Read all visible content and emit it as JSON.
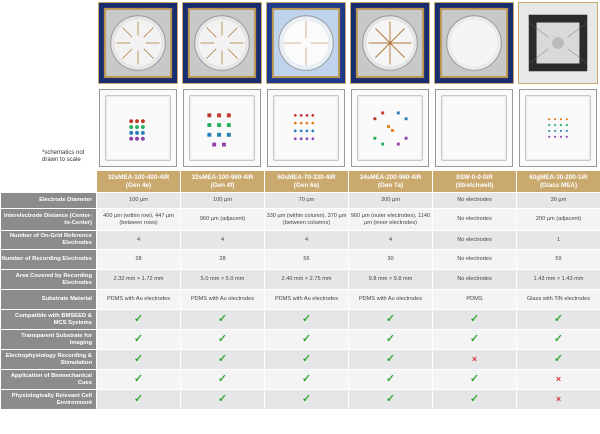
{
  "note": "*schematics not drawn to scale",
  "products": [
    {
      "name": "32sMEA-100-400-4iR",
      "gen": "(Gen 4e)"
    },
    {
      "name": "32sMEA-100-960-4iR",
      "gen": "(Gen 4f)"
    },
    {
      "name": "60sMEA-70-330-4iR",
      "gen": "(Gen 6a)"
    },
    {
      "name": "34sMEA-200-960-4iR",
      "gen": "(Gen 7a)"
    },
    {
      "name": "0SW-0-0-0iR",
      "gen": "(Stretchwell)"
    },
    {
      "name": "60gMEA-30-200-1iR",
      "gen": "(Glass MEA)"
    }
  ],
  "rows": [
    {
      "label": "Electrode Diameter",
      "type": "text",
      "values": [
        "100 µm",
        "100 µm",
        "70 µm",
        "200 µm",
        "No electrodes",
        "30 µm"
      ]
    },
    {
      "label": "Interelectrode Distance (Center-to-Center)",
      "type": "text",
      "values": [
        "400 µm (within row), 447 µm (between rows)",
        "960 µm (adjacent)",
        "330 µm (within column), 370 µm (between columns)",
        "960 µm (outer electrodes), 1140 µm (inner electrodes)",
        "No electrodes",
        "200 µm (adjacent)"
      ]
    },
    {
      "label": "Number of On-Grid Reference Electrodes",
      "type": "text",
      "values": [
        "4",
        "4",
        "4",
        "4",
        "No electrodes",
        "1"
      ]
    },
    {
      "label": "Number of Recording Electrodes",
      "type": "text",
      "values": [
        "28",
        "28",
        "56",
        "30",
        "No electrodes",
        "59"
      ]
    },
    {
      "label": "Area Covered by Recording Electrodes",
      "type": "text",
      "values": [
        "2.32 mm × 1.72 mm",
        "5.0 mm × 5.0 mm",
        "2.40 mm × 2.75 mm",
        "9.8 mm × 9.8 mm",
        "No electrodes",
        "1.43 mm × 1.43 mm"
      ]
    },
    {
      "label": "Substrate Material",
      "type": "text",
      "values": [
        "PDMS with Au electrodes",
        "PDMS with Au electrodes",
        "PDMS with Au electrodes",
        "PDMS with Au electrodes",
        "PDMS",
        "Glass with TiN electrodes"
      ]
    },
    {
      "label": "Compatible with BMSEED & MCS Systems",
      "type": "mark",
      "values": [
        "check",
        "check",
        "check",
        "check",
        "check",
        "check"
      ]
    },
    {
      "label": "Transparent Substrate for Imaging",
      "type": "mark",
      "values": [
        "check",
        "check",
        "check",
        "check",
        "check",
        "check"
      ]
    },
    {
      "label": "Electrophysiology Recording & Stimulation",
      "type": "mark",
      "values": [
        "check",
        "check",
        "check",
        "check",
        "cross",
        "check"
      ]
    },
    {
      "label": "Application of Biomechanical Cues",
      "type": "mark",
      "values": [
        "check",
        "check",
        "check",
        "check",
        "check",
        "cross"
      ]
    },
    {
      "label": "Physiologically Relevant Cell Environment",
      "type": "mark",
      "values": [
        "check",
        "check",
        "check",
        "check",
        "check",
        "cross"
      ]
    }
  ],
  "marks": {
    "check": "✓",
    "cross": "×"
  },
  "colors": {
    "header_gold": "#c9a96e",
    "label_gray": "#8c8c8c",
    "check_green": "#3aa83a",
    "cross_red": "#d63a3a"
  }
}
